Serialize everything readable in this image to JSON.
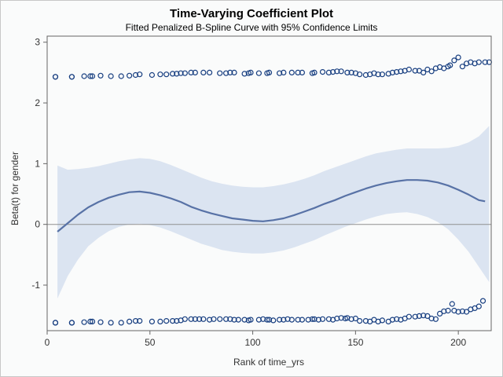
{
  "chart_data": {
    "type": "line",
    "title": "Time-Varying Coefficient Plot",
    "subtitle": "Fitted Penalized B-Spline Curve with 95% Confidence Limits",
    "xlabel": "Rank of time_yrs",
    "ylabel": "Beta(t) for gender",
    "xlim": [
      0,
      216
    ],
    "ylim": [
      -1.75,
      3.1
    ],
    "xticks": [
      0,
      50,
      100,
      150,
      200
    ],
    "yticks": [
      -1,
      0,
      1,
      2,
      3
    ],
    "reference_line": 0,
    "grid": false,
    "colors": {
      "fit": "#5872a6",
      "band": "#dbe4f1",
      "marker": "#173e80",
      "reference": "#909090",
      "axis": "#666666"
    },
    "fit": {
      "x": [
        5,
        10,
        15,
        20,
        25,
        30,
        35,
        40,
        45,
        50,
        55,
        60,
        65,
        70,
        75,
        80,
        85,
        90,
        95,
        100,
        105,
        110,
        115,
        120,
        125,
        130,
        135,
        140,
        145,
        150,
        155,
        160,
        165,
        170,
        175,
        180,
        185,
        190,
        195,
        200,
        205,
        210,
        213
      ],
      "y": [
        -0.12,
        0.02,
        0.16,
        0.28,
        0.37,
        0.44,
        0.49,
        0.53,
        0.54,
        0.52,
        0.48,
        0.43,
        0.37,
        0.29,
        0.23,
        0.18,
        0.14,
        0.1,
        0.08,
        0.06,
        0.05,
        0.07,
        0.1,
        0.15,
        0.21,
        0.27,
        0.34,
        0.4,
        0.47,
        0.53,
        0.59,
        0.64,
        0.68,
        0.71,
        0.73,
        0.73,
        0.72,
        0.69,
        0.64,
        0.57,
        0.49,
        0.4,
        0.38
      ]
    },
    "lower": {
      "x": [
        5,
        10,
        15,
        20,
        25,
        30,
        35,
        40,
        45,
        50,
        55,
        60,
        65,
        70,
        75,
        80,
        85,
        90,
        95,
        100,
        105,
        110,
        115,
        120,
        125,
        130,
        135,
        140,
        145,
        150,
        155,
        160,
        165,
        170,
        175,
        180,
        185,
        190,
        195,
        200,
        205,
        210,
        215
      ],
      "y": [
        -1.22,
        -0.85,
        -0.58,
        -0.36,
        -0.22,
        -0.11,
        -0.04,
        0.0,
        0.01,
        -0.01,
        -0.05,
        -0.11,
        -0.18,
        -0.25,
        -0.32,
        -0.37,
        -0.42,
        -0.45,
        -0.47,
        -0.48,
        -0.48,
        -0.46,
        -0.43,
        -0.38,
        -0.32,
        -0.26,
        -0.18,
        -0.11,
        -0.04,
        0.02,
        0.08,
        0.13,
        0.17,
        0.19,
        0.2,
        0.17,
        0.12,
        0.04,
        -0.08,
        -0.25,
        -0.45,
        -0.7,
        -0.95
      ]
    },
    "upper": {
      "x": [
        5,
        10,
        15,
        20,
        25,
        30,
        35,
        40,
        45,
        50,
        55,
        60,
        65,
        70,
        75,
        80,
        85,
        90,
        95,
        100,
        105,
        110,
        115,
        120,
        125,
        130,
        135,
        140,
        145,
        150,
        155,
        160,
        165,
        170,
        175,
        180,
        185,
        190,
        195,
        200,
        205,
        210,
        215
      ],
      "y": [
        0.97,
        0.9,
        0.91,
        0.93,
        0.96,
        1.0,
        1.04,
        1.07,
        1.09,
        1.08,
        1.04,
        0.98,
        0.91,
        0.84,
        0.77,
        0.71,
        0.67,
        0.64,
        0.62,
        0.61,
        0.61,
        0.63,
        0.66,
        0.7,
        0.75,
        0.81,
        0.88,
        0.94,
        1.0,
        1.06,
        1.12,
        1.17,
        1.2,
        1.23,
        1.25,
        1.25,
        1.25,
        1.25,
        1.26,
        1.29,
        1.35,
        1.45,
        1.62
      ]
    },
    "points": {
      "x": [
        4,
        4,
        12,
        12,
        18,
        21,
        22,
        26,
        31,
        36,
        40,
        43,
        45,
        51,
        55,
        58,
        61,
        63,
        65,
        67,
        70,
        72,
        76,
        79,
        84,
        87,
        89,
        91,
        96,
        98,
        99,
        103,
        107,
        108,
        113,
        115,
        119,
        122,
        124,
        129,
        130,
        134,
        137,
        139,
        141,
        143,
        146,
        148,
        150,
        152,
        155,
        157,
        159,
        161,
        163,
        166,
        168,
        170,
        172,
        174,
        176,
        179,
        181,
        183,
        185,
        187,
        189,
        191,
        193,
        195,
        196,
        198,
        200,
        202,
        204,
        206,
        208,
        210,
        213,
        215,
        4,
        4,
        12,
        12,
        18,
        21,
        22,
        26,
        31,
        36,
        40,
        43,
        45,
        51,
        55,
        58,
        61,
        63,
        65,
        67,
        70,
        72,
        74,
        76,
        79,
        81,
        84,
        87,
        89,
        91,
        93,
        96,
        98,
        99,
        103,
        105,
        107,
        108,
        110,
        113,
        115,
        117,
        119,
        122,
        124,
        127,
        129,
        130,
        132,
        134,
        137,
        139,
        141,
        143,
        145,
        146,
        148,
        150,
        152,
        155,
        157,
        159,
        161,
        163,
        166,
        168,
        170,
        172,
        174,
        176,
        179,
        181,
        183,
        185,
        187,
        189,
        191,
        193,
        195,
        197,
        198,
        200,
        202,
        204,
        206,
        208,
        210,
        212
      ],
      "y": [
        2.43,
        2.43,
        2.43,
        2.43,
        2.44,
        2.44,
        2.44,
        2.45,
        2.44,
        2.44,
        2.45,
        2.46,
        2.47,
        2.46,
        2.47,
        2.47,
        2.48,
        2.48,
        2.49,
        2.49,
        2.5,
        2.5,
        2.5,
        2.5,
        2.49,
        2.49,
        2.5,
        2.5,
        2.48,
        2.49,
        2.5,
        2.49,
        2.49,
        2.5,
        2.49,
        2.5,
        2.5,
        2.5,
        2.5,
        2.49,
        2.5,
        2.51,
        2.5,
        2.51,
        2.52,
        2.52,
        2.5,
        2.5,
        2.49,
        2.47,
        2.46,
        2.47,
        2.49,
        2.47,
        2.47,
        2.48,
        2.5,
        2.51,
        2.52,
        2.53,
        2.55,
        2.53,
        2.53,
        2.5,
        2.55,
        2.52,
        2.57,
        2.59,
        2.57,
        2.6,
        2.62,
        2.7,
        2.75,
        2.6,
        2.65,
        2.67,
        2.65,
        2.67,
        2.67,
        2.67,
        -1.62,
        -1.62,
        -1.62,
        -1.62,
        -1.61,
        -1.6,
        -1.6,
        -1.61,
        -1.62,
        -1.62,
        -1.6,
        -1.59,
        -1.59,
        -1.6,
        -1.6,
        -1.59,
        -1.59,
        -1.59,
        -1.58,
        -1.56,
        -1.56,
        -1.56,
        -1.56,
        -1.56,
        -1.57,
        -1.56,
        -1.56,
        -1.56,
        -1.56,
        -1.57,
        -1.57,
        -1.57,
        -1.58,
        -1.57,
        -1.57,
        -1.56,
        -1.57,
        -1.57,
        -1.58,
        -1.57,
        -1.57,
        -1.56,
        -1.57,
        -1.57,
        -1.57,
        -1.57,
        -1.56,
        -1.56,
        -1.57,
        -1.56,
        -1.56,
        -1.57,
        -1.55,
        -1.54,
        -1.55,
        -1.54,
        -1.56,
        -1.55,
        -1.59,
        -1.59,
        -1.6,
        -1.57,
        -1.6,
        -1.58,
        -1.6,
        -1.57,
        -1.56,
        -1.57,
        -1.55,
        -1.52,
        -1.52,
        -1.51,
        -1.5,
        -1.51,
        -1.55,
        -1.56,
        -1.47,
        -1.43,
        -1.42,
        -1.31,
        -1.42,
        -1.44,
        -1.43,
        -1.44,
        -1.4,
        -1.38,
        -1.35,
        -1.26
      ]
    }
  }
}
